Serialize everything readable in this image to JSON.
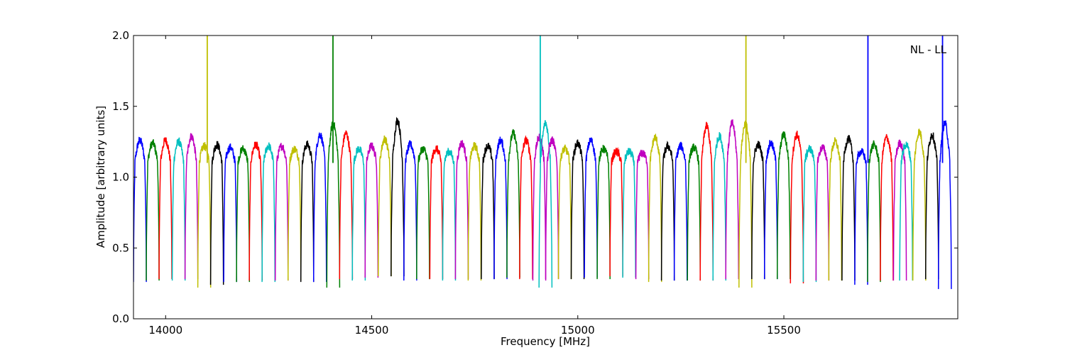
{
  "chart_data": {
    "type": "line",
    "xlabel": "Frequency [MHz]",
    "ylabel": "Amplitude [arbitrary units]",
    "annotation": "NL - LL",
    "annotation_placement": "top-right",
    "xlim": [
      13922,
      15922
    ],
    "ylim": [
      0.0,
      2.0
    ],
    "x_ticks": [
      14000,
      14500,
      15000,
      15500
    ],
    "x_tick_labels": [
      "14000",
      "14500",
      "15000",
      "15500"
    ],
    "y_ticks": [
      0.0,
      0.5,
      1.0,
      1.5,
      2.0
    ],
    "y_tick_labels": [
      "0.0",
      "0.5",
      "1.0",
      "1.5",
      "2.0"
    ],
    "grid": false,
    "legend": false,
    "series_colors": [
      "#0000ff",
      "#008000",
      "#ff0000",
      "#00bfbf",
      "#bf00bf",
      "#bfbf00",
      "#000000"
    ],
    "subband_width_mhz": 31.25,
    "subbands": [
      {
        "color": "#0000ff",
        "start": 13922,
        "peak": 1.26,
        "min": 0.26
      },
      {
        "color": "#008000",
        "start": 13953,
        "peak": 1.24,
        "min": 0.27
      },
      {
        "color": "#ff0000",
        "start": 13984,
        "peak": 1.26,
        "min": 0.28
      },
      {
        "color": "#00bfbf",
        "start": 14016,
        "peak": 1.25,
        "min": 0.27
      },
      {
        "color": "#bf00bf",
        "start": 14047,
        "peak": 1.29,
        "min": 0.28
      },
      {
        "color": "#bfbf00",
        "start": 14078,
        "peak": 1.22,
        "min": 0.22,
        "spike_x": 14101
      },
      {
        "color": "#000000",
        "start": 14109,
        "peak": 1.23,
        "min": 0.24
      },
      {
        "color": "#0000ff",
        "start": 14141,
        "peak": 1.21,
        "min": 0.26
      },
      {
        "color": "#008000",
        "start": 14172,
        "peak": 1.2,
        "min": 0.26
      },
      {
        "color": "#ff0000",
        "start": 14203,
        "peak": 1.23,
        "min": 0.27
      },
      {
        "color": "#00bfbf",
        "start": 14234,
        "peak": 1.22,
        "min": 0.26
      },
      {
        "color": "#bf00bf",
        "start": 14266,
        "peak": 1.22,
        "min": 0.27
      },
      {
        "color": "#bfbf00",
        "start": 14297,
        "peak": 1.2,
        "min": 0.27
      },
      {
        "color": "#000000",
        "start": 14328,
        "peak": 1.23,
        "min": 0.26
      },
      {
        "color": "#0000ff",
        "start": 14359,
        "peak": 1.3,
        "min": 0.26
      },
      {
        "color": "#008000",
        "start": 14391,
        "peak": 1.38,
        "min": 0.22,
        "spike_x": 14406
      },
      {
        "color": "#ff0000",
        "start": 14422,
        "peak": 1.31,
        "min": 0.28
      },
      {
        "color": "#00bfbf",
        "start": 14453,
        "peak": 1.2,
        "min": 0.27
      },
      {
        "color": "#bf00bf",
        "start": 14484,
        "peak": 1.22,
        "min": 0.29
      },
      {
        "color": "#bfbf00",
        "start": 14516,
        "peak": 1.27,
        "min": 0.3
      },
      {
        "color": "#000000",
        "start": 14547,
        "peak": 1.4,
        "min": 0.3
      },
      {
        "color": "#0000ff",
        "start": 14578,
        "peak": 1.23,
        "min": 0.27
      },
      {
        "color": "#008000",
        "start": 14609,
        "peak": 1.2,
        "min": 0.28
      },
      {
        "color": "#ff0000",
        "start": 14641,
        "peak": 1.2,
        "min": 0.28
      },
      {
        "color": "#00bfbf",
        "start": 14672,
        "peak": 1.18,
        "min": 0.27
      },
      {
        "color": "#bf00bf",
        "start": 14703,
        "peak": 1.24,
        "min": 0.28
      },
      {
        "color": "#bfbf00",
        "start": 14734,
        "peak": 1.22,
        "min": 0.27
      },
      {
        "color": "#000000",
        "start": 14766,
        "peak": 1.22,
        "min": 0.28
      },
      {
        "color": "#0000ff",
        "start": 14797,
        "peak": 1.26,
        "min": 0.28
      },
      {
        "color": "#008000",
        "start": 14828,
        "peak": 1.31,
        "min": 0.29
      },
      {
        "color": "#ff0000",
        "start": 14859,
        "peak": 1.26,
        "min": 0.28
      },
      {
        "color": "#bf00bf",
        "start": 14891,
        "peak": 1.28,
        "min": 0.27
      },
      {
        "color": "#00bfbf",
        "start": 14906,
        "peak": 1.38,
        "min": 0.22,
        "spike_x": 14909
      },
      {
        "color": "#bf00bf",
        "start": 14922,
        "peak": 1.26,
        "min": 0.28
      },
      {
        "color": "#bfbf00",
        "start": 14953,
        "peak": 1.2,
        "min": 0.28
      },
      {
        "color": "#000000",
        "start": 14984,
        "peak": 1.24,
        "min": 0.28
      },
      {
        "color": "#0000ff",
        "start": 15016,
        "peak": 1.26,
        "min": 0.29
      },
      {
        "color": "#008000",
        "start": 15047,
        "peak": 1.2,
        "min": 0.28
      },
      {
        "color": "#ff0000",
        "start": 15078,
        "peak": 1.18,
        "min": 0.3
      },
      {
        "color": "#00bfbf",
        "start": 15109,
        "peak": 1.18,
        "min": 0.29
      },
      {
        "color": "#bf00bf",
        "start": 15141,
        "peak": 1.17,
        "min": 0.28
      },
      {
        "color": "#bfbf00",
        "start": 15172,
        "peak": 1.28,
        "min": 0.26
      },
      {
        "color": "#000000",
        "start": 15203,
        "peak": 1.22,
        "min": 0.27
      },
      {
        "color": "#0000ff",
        "start": 15234,
        "peak": 1.22,
        "min": 0.27
      },
      {
        "color": "#008000",
        "start": 15266,
        "peak": 1.21,
        "min": 0.27
      },
      {
        "color": "#ff0000",
        "start": 15297,
        "peak": 1.36,
        "min": 0.27
      },
      {
        "color": "#00bfbf",
        "start": 15328,
        "peak": 1.29,
        "min": 0.27
      },
      {
        "color": "#bf00bf",
        "start": 15359,
        "peak": 1.38,
        "min": 0.28
      },
      {
        "color": "#bfbf00",
        "start": 15391,
        "peak": 1.38,
        "min": 0.22,
        "spike_x": 15408
      },
      {
        "color": "#000000",
        "start": 15422,
        "peak": 1.23,
        "min": 0.28
      },
      {
        "color": "#0000ff",
        "start": 15453,
        "peak": 1.24,
        "min": 0.28
      },
      {
        "color": "#008000",
        "start": 15484,
        "peak": 1.3,
        "min": 0.28
      },
      {
        "color": "#ff0000",
        "start": 15516,
        "peak": 1.3,
        "min": 0.25
      },
      {
        "color": "#00bfbf",
        "start": 15547,
        "peak": 1.2,
        "min": 0.26
      },
      {
        "color": "#bf00bf",
        "start": 15578,
        "peak": 1.21,
        "min": 0.27
      },
      {
        "color": "#bfbf00",
        "start": 15609,
        "peak": 1.25,
        "min": 0.27
      },
      {
        "color": "#000000",
        "start": 15641,
        "peak": 1.27,
        "min": 0.27
      },
      {
        "color": "#0000ff",
        "start": 15672,
        "peak": 1.18,
        "min": 0.24,
        "spike_x": 15704
      },
      {
        "color": "#008000",
        "start": 15703,
        "peak": 1.23,
        "min": 0.26
      },
      {
        "color": "#ff0000",
        "start": 15734,
        "peak": 1.28,
        "min": 0.27
      },
      {
        "color": "#bf00bf",
        "start": 15766,
        "peak": 1.24,
        "min": 0.27
      },
      {
        "color": "#00bfbf",
        "start": 15781,
        "peak": 1.23,
        "min": 0.27
      },
      {
        "color": "#bfbf00",
        "start": 15813,
        "peak": 1.32,
        "min": 0.27
      },
      {
        "color": "#000000",
        "start": 15844,
        "peak": 1.3,
        "min": 0.28
      },
      {
        "color": "#0000ff",
        "start": 15875,
        "peak": 1.38,
        "min": 0.21,
        "spike_x": 15885
      }
    ]
  }
}
